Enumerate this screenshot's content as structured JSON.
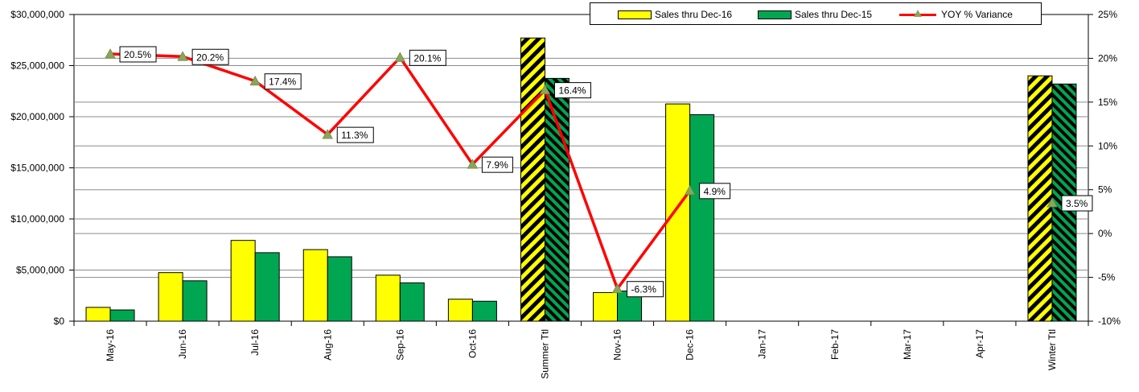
{
  "chart_data": {
    "type": "bar",
    "categories": [
      "May-16",
      "Jun-16",
      "Jul-16",
      "Aug-16",
      "Sep-16",
      "Oct-16",
      "Summer Ttl",
      "Nov-16",
      "Dec-16",
      "Jan-17",
      "Feb-17",
      "Mar-17",
      "Apr-17",
      "Winter Ttl"
    ],
    "total_categories": [
      "Summer Ttl",
      "Winter Ttl"
    ],
    "series": [
      {
        "name": "Sales thru Dec-16",
        "axis": "left",
        "type": "bar",
        "color": "#ffff00",
        "values": [
          1350000,
          4750000,
          7900000,
          7000000,
          4500000,
          2150000,
          27700000,
          2800000,
          21250000,
          null,
          null,
          null,
          null,
          24000000
        ]
      },
      {
        "name": "Sales thru Dec-15",
        "axis": "left",
        "type": "bar",
        "color": "#00a651",
        "values": [
          1100000,
          3950000,
          6700000,
          6300000,
          3750000,
          1950000,
          23750000,
          2950000,
          20200000,
          null,
          null,
          null,
          null,
          23200000
        ]
      },
      {
        "name": "YOY % Variance",
        "axis": "right",
        "type": "line",
        "color": "#ff0000",
        "marker_color": "#8aa65a",
        "values": [
          20.5,
          20.2,
          17.4,
          11.3,
          20.1,
          7.9,
          16.4,
          -6.3,
          4.9,
          null,
          null,
          null,
          null,
          3.5
        ],
        "labels": [
          "20.5%",
          "20.2%",
          "17.4%",
          "11.3%",
          "20.1%",
          "7.9%",
          "16.4%",
          "-6.3%",
          "4.9%",
          "",
          "",
          "",
          "",
          "3.5%"
        ]
      }
    ],
    "y_left": {
      "min": 0,
      "max": 30000000,
      "ticks": [
        "$0",
        "$5,000,000",
        "$10,000,000",
        "$15,000,000",
        "$20,000,000",
        "$25,000,000",
        "$30,000,000"
      ]
    },
    "y_right": {
      "min": -10,
      "max": 25,
      "ticks": [
        "-10%",
        "-5%",
        "0%",
        "5%",
        "10%",
        "15%",
        "20%",
        "25%"
      ]
    },
    "grid": true,
    "legend_position": "top-right"
  }
}
